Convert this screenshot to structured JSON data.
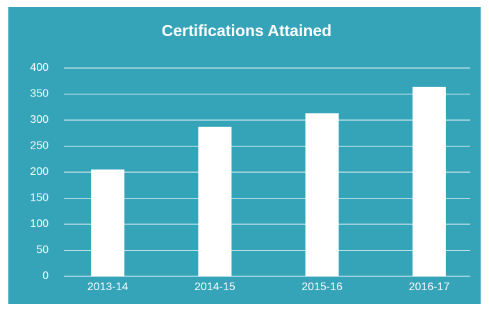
{
  "chart_data": {
    "type": "bar",
    "title": "Certifications Attained",
    "categories": [
      "2013-14",
      "2014-15",
      "2015-16",
      "2016-17"
    ],
    "values": [
      205,
      287,
      313,
      364
    ],
    "color": "#ffffff",
    "ylim": [
      0,
      400
    ],
    "yticks": [
      0,
      50,
      100,
      150,
      200,
      250,
      300,
      350,
      400
    ],
    "grid": true
  }
}
